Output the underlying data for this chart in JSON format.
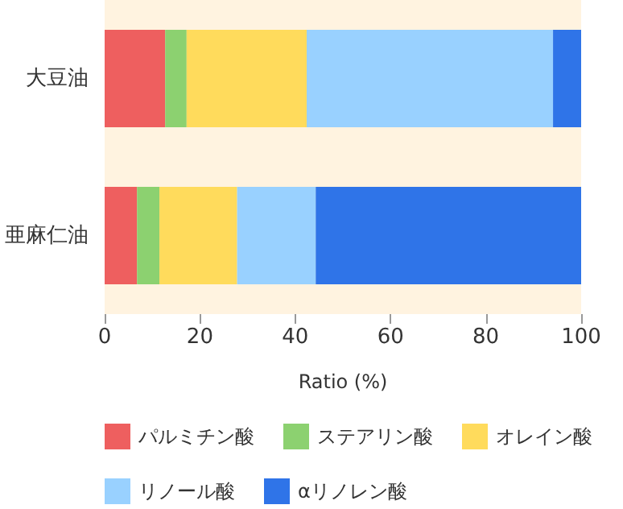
{
  "chart_data": {
    "type": "bar",
    "orientation": "horizontal",
    "stacked": true,
    "xlabel": "Ratio (%)",
    "categories": [
      "大豆油",
      "亜麻仁油"
    ],
    "xlim": [
      0,
      100
    ],
    "xticks": [
      0,
      20,
      40,
      60,
      80,
      100
    ],
    "grid": false,
    "legend": "bottom",
    "series": [
      {
        "name": "パルミチン酸",
        "color": "#ee5f5f",
        "values": [
          12.7,
          6.8
        ]
      },
      {
        "name": "ステアリン酸",
        "color": "#8cd170",
        "values": [
          4.5,
          4.7
        ]
      },
      {
        "name": "オレイン酸",
        "color": "#ffdb5c",
        "values": [
          25.2,
          16.3
        ]
      },
      {
        "name": "リノール酸",
        "color": "#99d1ff",
        "values": [
          51.7,
          16.5
        ]
      },
      {
        "name": "αリノレン酸",
        "color": "#2f74e8",
        "values": [
          5.9,
          55.7
        ]
      }
    ]
  }
}
